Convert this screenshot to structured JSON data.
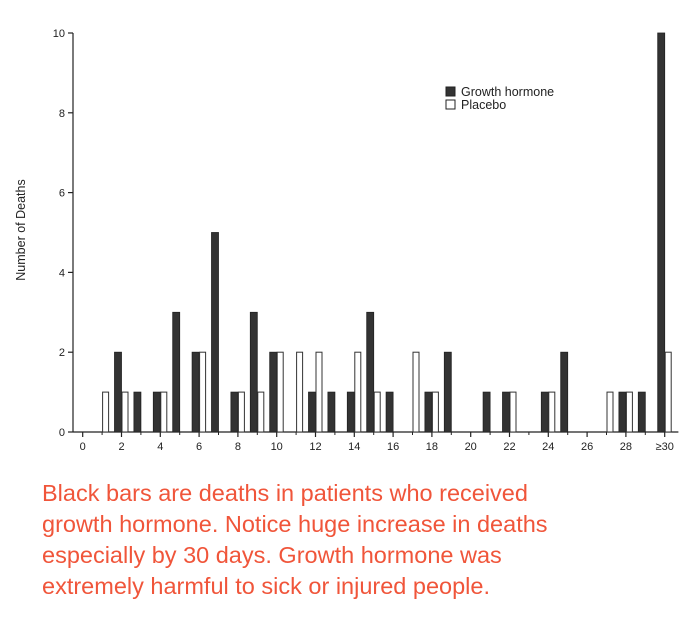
{
  "chart_data": {
    "type": "bar",
    "ylabel": "Number of Deaths",
    "xlabel": "",
    "ylim": [
      0,
      10
    ],
    "y_ticks": [
      "0",
      "2",
      "4",
      "6",
      "8",
      "10"
    ],
    "x_tick_labels": [
      "0",
      "2",
      "4",
      "6",
      "8",
      "10",
      "12",
      "14",
      "16",
      "18",
      "20",
      "22",
      "24",
      "26",
      "28",
      "≥30"
    ],
    "categories": [
      "1",
      "2",
      "3",
      "4",
      "5",
      "6",
      "7",
      "8",
      "9",
      "10",
      "11",
      "12",
      "13",
      "14",
      "15",
      "16",
      "17",
      "18",
      "19",
      "20",
      "21",
      "22",
      "23",
      "24",
      "25",
      "26",
      "27",
      "28",
      "29",
      "≥30"
    ],
    "series": [
      {
        "name": "Growth hormone",
        "color": "#333333",
        "values": [
          0,
          2,
          1,
          1,
          3,
          2,
          5,
          1,
          3,
          2,
          0,
          1,
          1,
          1,
          3,
          1,
          0,
          1,
          2,
          0,
          1,
          1,
          0,
          1,
          2,
          0,
          0,
          1,
          1,
          10
        ]
      },
      {
        "name": "Placebo",
        "color": "#ffffff",
        "values": [
          1,
          1,
          0,
          1,
          0,
          2,
          0,
          1,
          1,
          2,
          2,
          2,
          0,
          2,
          1,
          0,
          2,
          1,
          0,
          0,
          0,
          1,
          0,
          1,
          0,
          0,
          1,
          1,
          0,
          2
        ]
      }
    ],
    "legend": {
      "position": "top-right",
      "items": [
        {
          "label": "Growth hormone",
          "swatch": "#333333"
        },
        {
          "label": "Placebo",
          "swatch": "#ffffff"
        }
      ]
    }
  },
  "caption": {
    "lines": [
      "Black bars are deaths in patients who received",
      "growth hormone. Notice huge increase in deaths",
      "especially by 30 days. Growth hormone was",
      "extremely harmful to sick or injured people."
    ],
    "color": "#f0553a"
  }
}
